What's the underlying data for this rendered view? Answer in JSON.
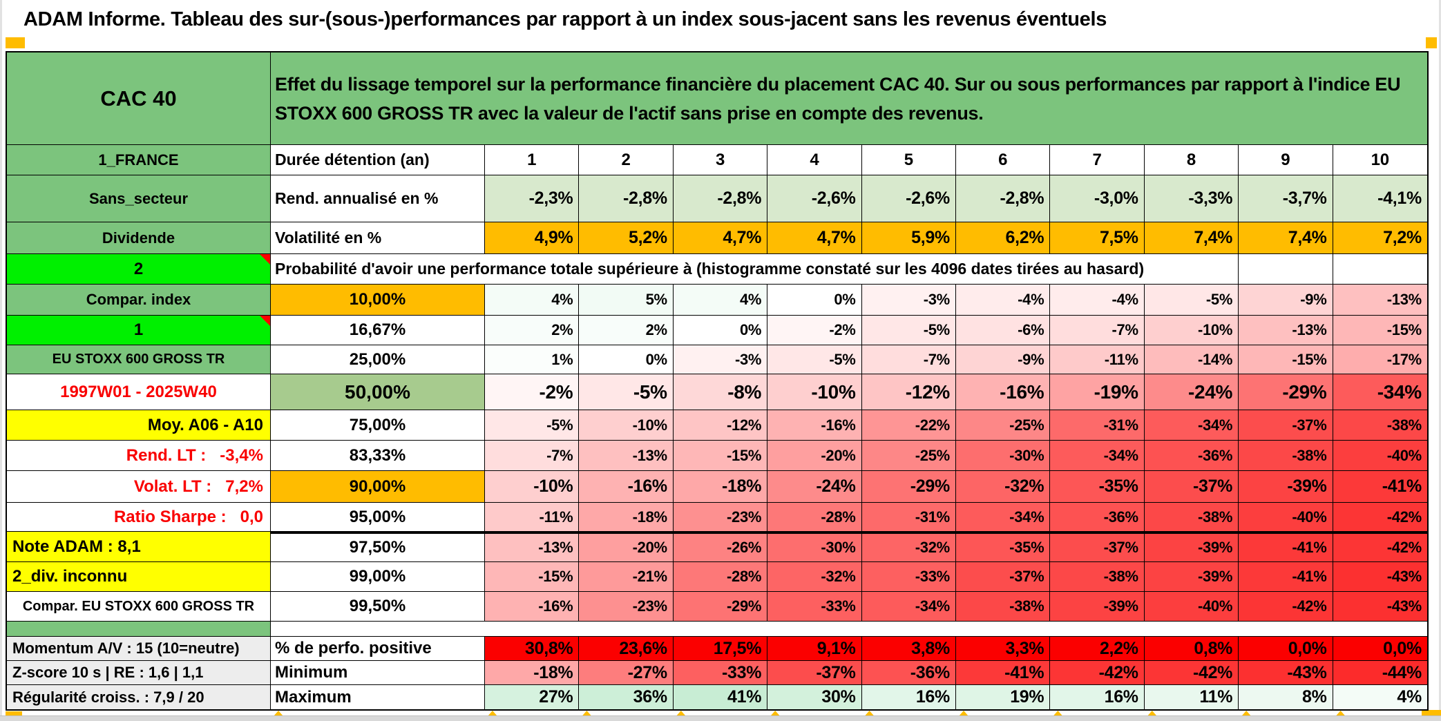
{
  "title": "ADAM Informe. Tableau des sur-(sous-)performances par rapport à un index sous-jacent sans les revenus éventuels",
  "table": {
    "asset_name": "CAC 40",
    "description": "Effet du lissage temporel sur la performance financière du placement CAC 40. Sur ou sous performances par rapport à l'indice EU STOXX 600 GROSS TR avec la valeur de l'actif sans prise en compte des revenus.",
    "rows": [
      {
        "left": "1_FRANCE",
        "left_style": "green",
        "label": "Durée détention (an)",
        "label_style": "header",
        "cell_style": "white",
        "emph": true,
        "values": [
          "1",
          "2",
          "3",
          "4",
          "5",
          "6",
          "7",
          "8",
          "9",
          "10"
        ]
      },
      {
        "left": "Sans_secteur",
        "left_style": "green",
        "label": "Rend. annualisé en %",
        "label_style": "header",
        "cell_style": "lightgreen",
        "emph": true,
        "values": [
          "-2,3%",
          "-2,8%",
          "-2,8%",
          "-2,6%",
          "-2,6%",
          "-2,8%",
          "-3,0%",
          "-3,3%",
          "-3,7%",
          "-4,1%"
        ]
      },
      {
        "left": "Dividende",
        "left_style": "green",
        "label": "Volatilité en %",
        "label_style": "header",
        "cell_style": "orange",
        "emph": true,
        "values": [
          "4,9%",
          "5,2%",
          "4,7%",
          "4,7%",
          "5,9%",
          "6,2%",
          "7,5%",
          "7,4%",
          "7,4%",
          "7,2%"
        ]
      },
      {
        "left": "2",
        "left_style": "bright",
        "row_type": "note",
        "note": "Probabilité d'avoir une performance totale supérieure à (histogramme constaté sur les 4096 dates tirées au hasard)"
      },
      {
        "left": "Compar. index",
        "left_style": "green",
        "label": "10,00%",
        "label_style": "orange",
        "cell_style": "heat",
        "values": [
          "4%",
          "5%",
          "4%",
          "0%",
          "-3%",
          "-4%",
          "-4%",
          "-5%",
          "-9%",
          "-13%"
        ]
      },
      {
        "left": "1",
        "left_style": "bright",
        "label": "16,67%",
        "label_style": "plain",
        "cell_style": "heat",
        "values": [
          "2%",
          "2%",
          "0%",
          "-2%",
          "-5%",
          "-6%",
          "-7%",
          "-10%",
          "-13%",
          "-15%"
        ]
      },
      {
        "left": "EU STOXX 600 GROSS TR",
        "left_style": "green-small",
        "label": "25,00%",
        "label_style": "plain",
        "cell_style": "heat",
        "values": [
          "1%",
          "0%",
          "-3%",
          "-5%",
          "-7%",
          "-9%",
          "-11%",
          "-14%",
          "-15%",
          "-17%"
        ]
      },
      {
        "left": "1997W01 - 2025W40",
        "left_style": "red-center",
        "label": "50,00%",
        "label_style": "green50",
        "cell_style": "heat",
        "emph": "big",
        "values": [
          "-2%",
          "-5%",
          "-8%",
          "-10%",
          "-12%",
          "-16%",
          "-19%",
          "-24%",
          "-29%",
          "-34%"
        ]
      },
      {
        "left": "Moy. A06 - A10",
        "left_style": "yellow-right",
        "label": "75,00%",
        "label_style": "plain",
        "cell_style": "heat",
        "values": [
          "-5%",
          "-10%",
          "-12%",
          "-16%",
          "-22%",
          "-25%",
          "-31%",
          "-34%",
          "-37%",
          "-38%"
        ]
      },
      {
        "left": "Rend. LT :   -3,4%",
        "left_style": "red-right",
        "label": "83,33%",
        "label_style": "plain",
        "cell_style": "heat",
        "values": [
          "-7%",
          "-13%",
          "-15%",
          "-20%",
          "-25%",
          "-30%",
          "-34%",
          "-36%",
          "-38%",
          "-40%"
        ]
      },
      {
        "left": "Volat. LT :   7,2%",
        "left_style": "red-right",
        "label": "90,00%",
        "label_style": "orange",
        "cell_style": "heat",
        "emph": true,
        "values": [
          "-10%",
          "-16%",
          "-18%",
          "-24%",
          "-29%",
          "-32%",
          "-35%",
          "-37%",
          "-39%",
          "-41%"
        ]
      },
      {
        "left": "Ratio Sharpe :   0,0",
        "left_style": "red-right",
        "label": "95,00%",
        "label_style": "plain",
        "cell_style": "heat",
        "values": [
          "-11%",
          "-18%",
          "-23%",
          "-28%",
          "-31%",
          "-34%",
          "-36%",
          "-38%",
          "-40%",
          "-42%"
        ]
      },
      {
        "left": "Note ADAM : 8,1",
        "left_style": "yellow-left",
        "label": "97,50%",
        "label_style": "plain",
        "cell_style": "heat",
        "thick_top": true,
        "values": [
          "-13%",
          "-20%",
          "-26%",
          "-30%",
          "-32%",
          "-35%",
          "-37%",
          "-39%",
          "-41%",
          "-42%"
        ]
      },
      {
        "left": "2_div. inconnu",
        "left_style": "yellow-left",
        "label": "99,00%",
        "label_style": "plain",
        "cell_style": "heat",
        "values": [
          "-15%",
          "-21%",
          "-28%",
          "-32%",
          "-33%",
          "-37%",
          "-38%",
          "-39%",
          "-41%",
          "-43%"
        ]
      },
      {
        "left": "Compar. EU STOXX 600 GROSS TR",
        "left_style": "white-center",
        "label": "99,50%",
        "label_style": "plain",
        "cell_style": "heat",
        "values": [
          "-16%",
          "-23%",
          "-29%",
          "-33%",
          "-34%",
          "-38%",
          "-39%",
          "-40%",
          "-42%",
          "-43%"
        ]
      },
      {
        "left": "",
        "left_style": "green-empty",
        "row_type": "gap"
      },
      {
        "left": "Momentum A/V : 15 (10=neutre)",
        "left_style": "gray",
        "label": "% de perfo. positive",
        "label_style": "left",
        "cell_style": "red",
        "emph": true,
        "values": [
          "30,8%",
          "23,6%",
          "17,5%",
          "9,1%",
          "3,8%",
          "3,3%",
          "2,2%",
          "0,8%",
          "0,0%",
          "0,0%"
        ]
      },
      {
        "left": "Z-score 10 s | RE : 1,6 | 1,1",
        "left_style": "gray",
        "label": "Minimum",
        "label_style": "left",
        "cell_style": "heat",
        "emph": true,
        "values": [
          "-18%",
          "-27%",
          "-33%",
          "-37%",
          "-36%",
          "-41%",
          "-42%",
          "-42%",
          "-43%",
          "-44%"
        ]
      },
      {
        "left": "Régularité croiss. : 7,9 / 20",
        "left_style": "gray",
        "label": "Maximum",
        "label_style": "left",
        "cell_style": "heat",
        "emph": true,
        "values": [
          "27%",
          "36%",
          "41%",
          "30%",
          "16%",
          "19%",
          "16%",
          "11%",
          "8%",
          "4%"
        ]
      }
    ]
  },
  "colors": {
    "header_green": "#7cc47d",
    "bright_green": "#00f000",
    "orange": "#ffbc00",
    "yellow": "#ffff00",
    "light_green_row": "#d8e9cd",
    "mid_green_label": "#a7cb8e",
    "red_row": "#fb0000",
    "heat_red": "#fc2b2b",
    "heat_green": "#c4ecd1",
    "gray_label": "#ededed",
    "red_text": "#f90000",
    "comment_marker_red": "#ff0000"
  }
}
